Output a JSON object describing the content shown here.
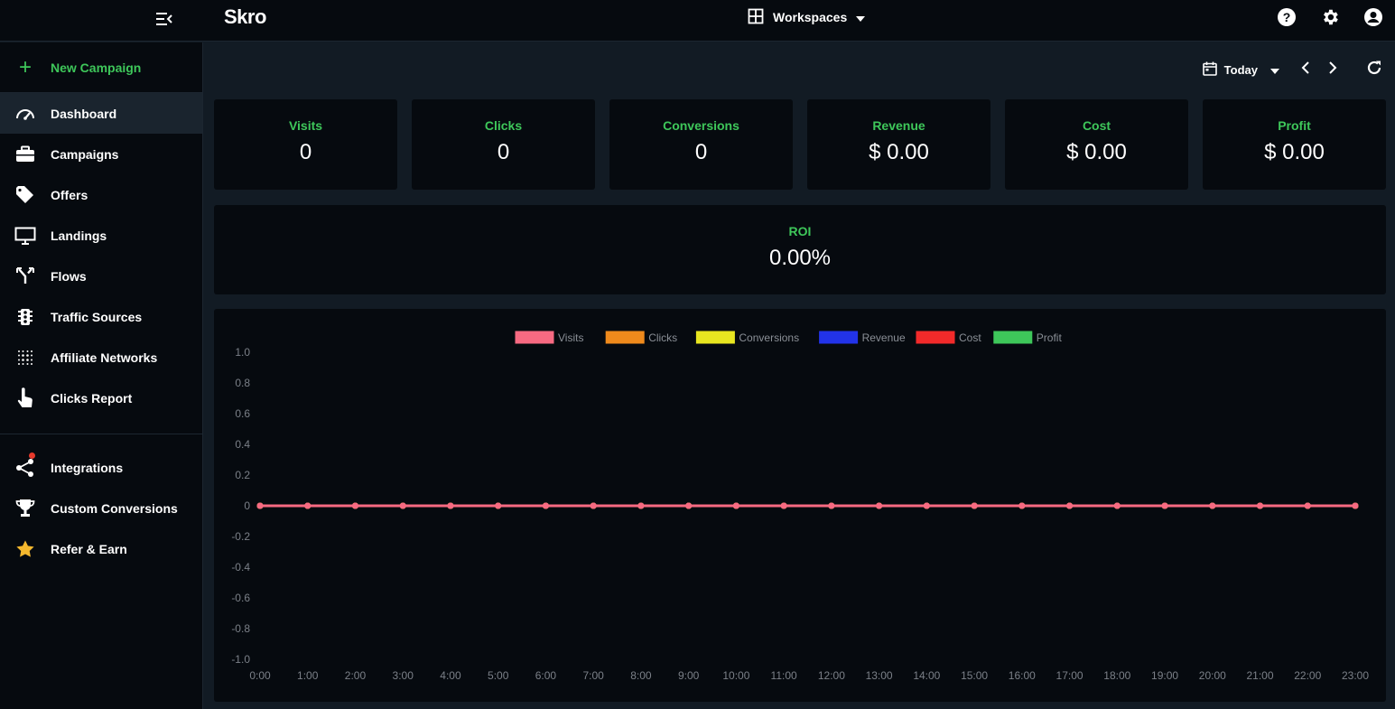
{
  "header": {
    "brand": "Skro",
    "workspaces_label": "Workspaces"
  },
  "sidebar": {
    "new_campaign": "New Campaign",
    "items": [
      {
        "label": "Dashboard",
        "icon": "gauge-icon",
        "active": true
      },
      {
        "label": "Campaigns",
        "icon": "briefcase-icon"
      },
      {
        "label": "Offers",
        "icon": "tag-icon"
      },
      {
        "label": "Landings",
        "icon": "monitor-icon"
      },
      {
        "label": "Flows",
        "icon": "fork-icon"
      },
      {
        "label": "Traffic Sources",
        "icon": "traffic-light-icon"
      },
      {
        "label": "Affiliate Networks",
        "icon": "dots-grid-icon"
      },
      {
        "label": "Clicks Report",
        "icon": "pointer-hand-icon"
      }
    ],
    "items2": [
      {
        "label": "Integrations",
        "icon": "share-icon"
      },
      {
        "label": "Custom Conversions",
        "icon": "trophy-icon"
      },
      {
        "label": "Refer & Earn",
        "icon": "star-icon"
      }
    ]
  },
  "datebar": {
    "range_label": "Today"
  },
  "stats": [
    {
      "title": "Visits",
      "value": "0"
    },
    {
      "title": "Clicks",
      "value": "0"
    },
    {
      "title": "Conversions",
      "value": "0"
    },
    {
      "title": "Revenue",
      "value": "$ 0.00"
    },
    {
      "title": "Cost",
      "value": "$ 0.00"
    },
    {
      "title": "Profit",
      "value": "$ 0.00"
    }
  ],
  "roi": {
    "title": "ROI",
    "value": "0.00%"
  },
  "colors": {
    "accent_green": "#3ec75a",
    "visits": "#f76a82",
    "clicks": "#ef8a1c",
    "conversions": "#e8e620",
    "revenue": "#2233e8",
    "cost": "#f22a2a",
    "profit": "#3ec75a"
  },
  "chart_data": {
    "type": "line",
    "x": [
      "0:00",
      "1:00",
      "2:00",
      "3:00",
      "4:00",
      "5:00",
      "6:00",
      "7:00",
      "8:00",
      "9:00",
      "10:00",
      "11:00",
      "12:00",
      "13:00",
      "14:00",
      "15:00",
      "16:00",
      "17:00",
      "18:00",
      "19:00",
      "20:00",
      "21:00",
      "22:00",
      "23:00"
    ],
    "series": [
      {
        "name": "Visits",
        "color": "#f76a82",
        "values": [
          0,
          0,
          0,
          0,
          0,
          0,
          0,
          0,
          0,
          0,
          0,
          0,
          0,
          0,
          0,
          0,
          0,
          0,
          0,
          0,
          0,
          0,
          0,
          0
        ]
      },
      {
        "name": "Clicks",
        "color": "#ef8a1c",
        "values": [
          0,
          0,
          0,
          0,
          0,
          0,
          0,
          0,
          0,
          0,
          0,
          0,
          0,
          0,
          0,
          0,
          0,
          0,
          0,
          0,
          0,
          0,
          0,
          0
        ]
      },
      {
        "name": "Conversions",
        "color": "#e8e620",
        "values": [
          0,
          0,
          0,
          0,
          0,
          0,
          0,
          0,
          0,
          0,
          0,
          0,
          0,
          0,
          0,
          0,
          0,
          0,
          0,
          0,
          0,
          0,
          0,
          0
        ]
      },
      {
        "name": "Revenue",
        "color": "#2233e8",
        "values": [
          0,
          0,
          0,
          0,
          0,
          0,
          0,
          0,
          0,
          0,
          0,
          0,
          0,
          0,
          0,
          0,
          0,
          0,
          0,
          0,
          0,
          0,
          0,
          0
        ]
      },
      {
        "name": "Cost",
        "color": "#f22a2a",
        "values": [
          0,
          0,
          0,
          0,
          0,
          0,
          0,
          0,
          0,
          0,
          0,
          0,
          0,
          0,
          0,
          0,
          0,
          0,
          0,
          0,
          0,
          0,
          0,
          0
        ]
      },
      {
        "name": "Profit",
        "color": "#3ec75a",
        "values": [
          0,
          0,
          0,
          0,
          0,
          0,
          0,
          0,
          0,
          0,
          0,
          0,
          0,
          0,
          0,
          0,
          0,
          0,
          0,
          0,
          0,
          0,
          0,
          0
        ]
      }
    ],
    "yticks": [
      "1.0",
      "0.8",
      "0.6",
      "0.4",
      "0.2",
      "0",
      "-0.2",
      "-0.4",
      "-0.6",
      "-0.8",
      "-1.0"
    ],
    "ylim": [
      -1,
      1
    ],
    "legend": "top-center",
    "grid": false
  }
}
